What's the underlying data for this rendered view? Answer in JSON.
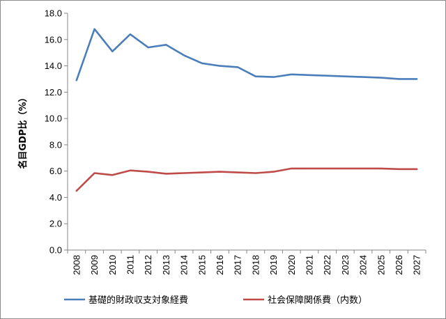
{
  "chart_data": {
    "type": "line",
    "title": "",
    "xlabel": "",
    "ylabel": "名目GDP比（%）",
    "ylim": [
      0,
      18
    ],
    "yticks": [
      "0.0",
      "2.0",
      "4.0",
      "6.0",
      "8.0",
      "10.0",
      "12.0",
      "14.0",
      "16.0",
      "18.0"
    ],
    "grid": false,
    "legend_position": "bottom",
    "categories": [
      "2008",
      "2009",
      "2010",
      "2011",
      "2012",
      "2013",
      "2014",
      "2015",
      "2016",
      "2017",
      "2018",
      "2019",
      "2020",
      "2021",
      "2022",
      "2023",
      "2024",
      "2025",
      "2026",
      "2027"
    ],
    "series": [
      {
        "name": "基礎的財政収支対象経費",
        "color": "#4a7ebb",
        "values": [
          12.9,
          16.8,
          15.1,
          16.4,
          15.4,
          15.6,
          14.8,
          14.2,
          14.0,
          13.9,
          13.2,
          13.15,
          13.35,
          13.3,
          13.25,
          13.2,
          13.15,
          13.1,
          13.0,
          13.0
        ]
      },
      {
        "name": "社会保障関係費（内数）",
        "color": "#be4b48",
        "values": [
          4.5,
          5.85,
          5.7,
          6.05,
          5.95,
          5.8,
          5.85,
          5.9,
          5.95,
          5.9,
          5.85,
          5.95,
          6.2,
          6.2,
          6.2,
          6.2,
          6.2,
          6.2,
          6.15,
          6.15
        ]
      }
    ]
  }
}
